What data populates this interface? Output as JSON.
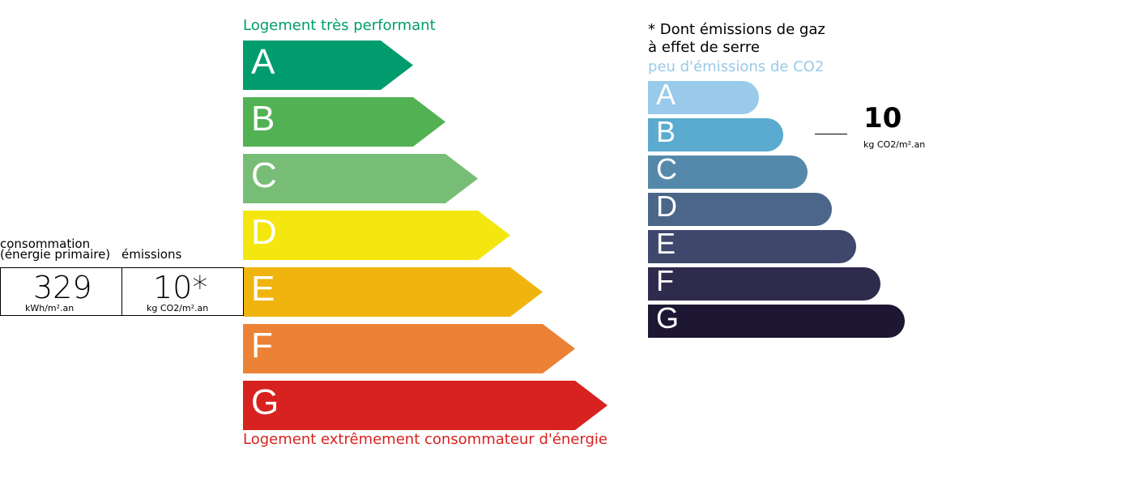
{
  "energy": {
    "top_label": "Logement très performant",
    "bottom_label": "Logement extrêmement consommateur d'énergie",
    "top_color": "#009c6d",
    "bottom_color": "#d7221f",
    "classes": [
      {
        "letter": "A",
        "color": "#009c6d"
      },
      {
        "letter": "B",
        "color": "#52b153"
      },
      {
        "letter": "C",
        "color": "#78bd76"
      },
      {
        "letter": "D",
        "color": "#f4e70f"
      },
      {
        "letter": "E",
        "color": "#f0b40f"
      },
      {
        "letter": "F",
        "color": "#eb8235"
      },
      {
        "letter": "G",
        "color": "#d7221f"
      }
    ]
  },
  "summary": {
    "consumption_label_1": "consommation",
    "consumption_label_2": "(énergie primaire)",
    "emissions_label": "émissions",
    "consumption_value": "329",
    "consumption_unit": "kWh/m².an",
    "emissions_value": "10*",
    "emissions_unit": "kg CO2/m².an"
  },
  "ges": {
    "note_1": "* Dont émissions de gaz",
    "note_2": "à effet de serre",
    "top_label": "peu d'émissions de CO2",
    "top_color": "#99cae9",
    "value": "10",
    "unit": "kg CO2/m².an",
    "classes": [
      {
        "letter": "A",
        "color": "#99cae9"
      },
      {
        "letter": "B",
        "color": "#5aabcf"
      },
      {
        "letter": "C",
        "color": "#5589ab"
      },
      {
        "letter": "D",
        "color": "#4b6689"
      },
      {
        "letter": "E",
        "color": "#3f476c"
      },
      {
        "letter": "F",
        "color": "#2e2b4d"
      },
      {
        "letter": "G",
        "color": "#1d1733"
      }
    ]
  }
}
